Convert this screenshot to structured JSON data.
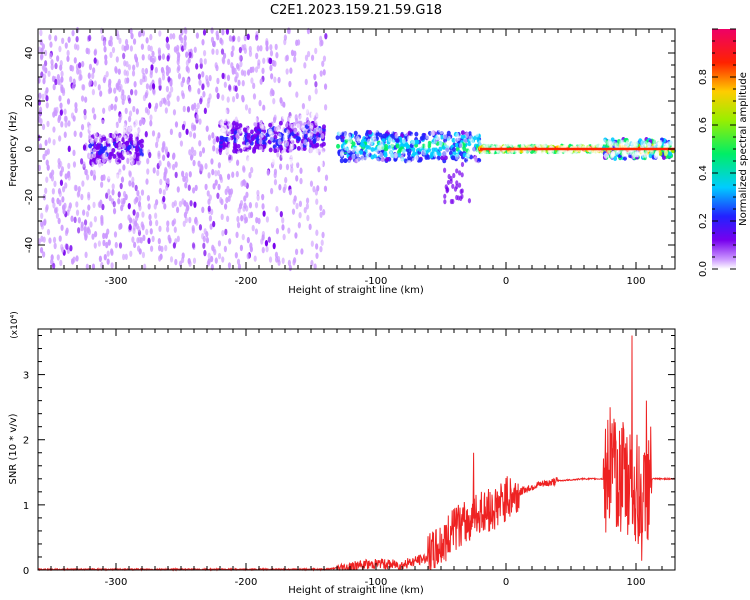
{
  "title": "C2E1.2023.159.21.59.G18",
  "colors": {
    "snr_line": "#ee2222",
    "spectral_bg": "#ffffff",
    "colormap": [
      "#ffffff",
      "#cc99ff",
      "#7700ee",
      "#2222ff",
      "#00ccff",
      "#00ee66",
      "#99ee00",
      "#ffcc00",
      "#ff2200",
      "#ee0066"
    ]
  },
  "chart_data": [
    {
      "type": "heatmap",
      "xlabel": "Height of straight line (km)",
      "ylabel": "Frequency (Hz)",
      "xlim": [
        -360,
        130
      ],
      "ylim": [
        -50,
        50
      ],
      "xticks": [
        -300,
        -200,
        -100,
        0,
        100
      ],
      "yticks": [
        -40,
        -20,
        0,
        20,
        40
      ],
      "grid": false,
      "colorbar": {
        "label": "Normalized spectral amplitude",
        "range": [
          0,
          1
        ],
        "ticks": [
          "0.0",
          "0.2",
          "0.4",
          "0.6",
          "0.8"
        ]
      },
      "features": [
        {
          "x_range": [
            -360,
            -140
          ],
          "freq_range": [
            -50,
            50
          ],
          "amplitude": "0.0-0.15",
          "character": "broadband noise"
        },
        {
          "x_range": [
            -320,
            -280
          ],
          "freq_center": 0,
          "amplitude": "0.15-0.3"
        },
        {
          "x_range": [
            -220,
            -140
          ],
          "freq_center": 5,
          "amplitude": "0.15-0.35"
        },
        {
          "x_range": [
            -130,
            -20
          ],
          "freq_center": 1,
          "amplitude": "0.3-0.6"
        },
        {
          "x_range": [
            -20,
            75
          ],
          "freq_center": 0,
          "amplitude": "0.9-1.0"
        },
        {
          "x_range": [
            75,
            130
          ],
          "freq_center": 0,
          "amplitude": "0.3-1.0"
        }
      ]
    },
    {
      "type": "line",
      "xlabel": "Height of straight line (km)",
      "ylabel": "SNR (10 * v/v)",
      "y_multiplier": "(x10⁴)",
      "xlim": [
        -360,
        130
      ],
      "ylim": [
        0,
        3.7
      ],
      "xticks": [
        -300,
        -200,
        -100,
        0,
        100
      ],
      "yticks": [
        0,
        1,
        2,
        3
      ],
      "grid": false,
      "series": [
        {
          "x": [
            -360,
            -300,
            -200,
            -140,
            -120,
            -100,
            -80,
            -60,
            -50,
            -40,
            -30,
            -20,
            -10,
            0,
            20,
            40,
            60,
            75,
            85,
            90,
            95,
            100,
            105,
            110,
            130
          ],
          "y": [
            0.01,
            0.01,
            0.01,
            0.01,
            0.05,
            0.1,
            0.08,
            0.2,
            0.4,
            0.6,
            0.75,
            0.85,
            0.95,
            1.1,
            1.28,
            1.37,
            1.4,
            1.4,
            1.45,
            1.5,
            1.2,
            1.3,
            1.0,
            1.4,
            1.4
          ]
        }
      ],
      "peaks": [
        {
          "x": -25,
          "y": 1.8
        },
        {
          "x": 80,
          "y": 2.5
        },
        {
          "x": 97,
          "y": 3.6
        },
        {
          "x": 108,
          "y": 2.6
        }
      ]
    }
  ]
}
